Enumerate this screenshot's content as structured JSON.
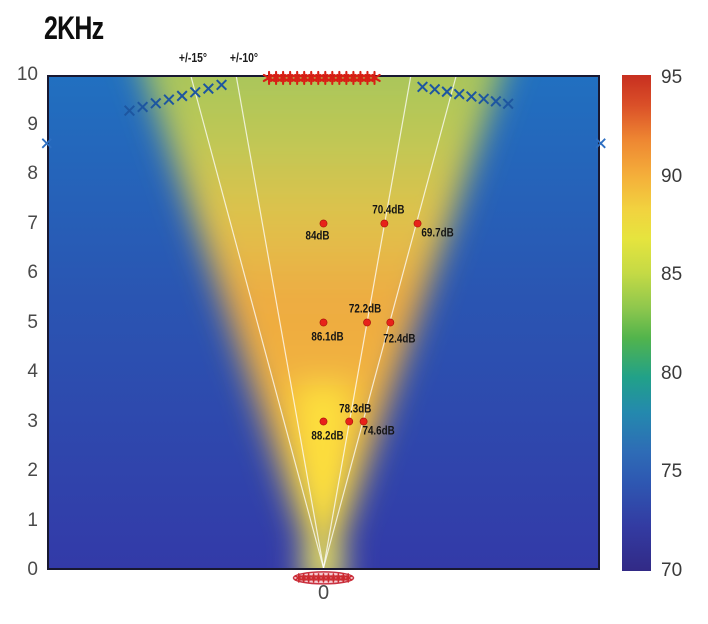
{
  "palette": {
    "background_low": "#333aa8",
    "background_mid": "#2a55b2",
    "background_high": "#2170c0",
    "beam_core": "#ffe944",
    "beam_top": "#9dc45f",
    "marker_red": "#d81f14",
    "marker_blue": "#1d56a0",
    "guide_line": "#ffffff",
    "axis_text": "#4a4a4a",
    "label_text": "#141414"
  },
  "chart_data": {
    "type": "heatmap",
    "title": "2KHz",
    "xlabel": "",
    "ylabel": "",
    "x_axis": {
      "tick_labels": [
        "0"
      ]
    },
    "y_axis": {
      "range": [
        0,
        10
      ],
      "ticks": [
        10,
        9,
        8,
        7,
        6,
        5,
        4,
        3,
        2,
        1,
        0
      ]
    },
    "colorbar": {
      "range": [
        70,
        95
      ],
      "ticks": [
        95,
        90,
        85,
        80,
        75,
        70
      ],
      "unit": "dB"
    },
    "guide_angles": [
      {
        "angle_deg": 15,
        "label": "+/-15°"
      },
      {
        "angle_deg": 10,
        "label": "+/-10°"
      }
    ],
    "measurements": [
      {
        "height": 7,
        "angle_deg": 0,
        "spl_db": 84.0,
        "label": "84dB",
        "x": 0,
        "y": 7,
        "label_dx": -6,
        "label_dy": 16
      },
      {
        "height": 7,
        "angle_deg": 10,
        "spl_db": 70.4,
        "label": "70.4dB",
        "x": 1.23,
        "y": 7,
        "label_dx": 4,
        "label_dy": -10
      },
      {
        "height": 7,
        "angle_deg": 15,
        "spl_db": 69.7,
        "label": "69.7dB",
        "x": 1.9,
        "y": 7,
        "label_dx": 20,
        "label_dy": 13
      },
      {
        "height": 5,
        "angle_deg": 0,
        "spl_db": 86.1,
        "label": "86.1dB",
        "x": 0,
        "y": 5,
        "label_dx": 4,
        "label_dy": 18
      },
      {
        "height": 5,
        "angle_deg": 10,
        "spl_db": 72.2,
        "label": "72.2dB",
        "x": 0.88,
        "y": 5,
        "label_dx": -2,
        "label_dy": -10
      },
      {
        "height": 5,
        "angle_deg": 15,
        "spl_db": 72.4,
        "label": "72.4dB",
        "x": 1.35,
        "y": 5,
        "label_dx": 9,
        "label_dy": 20
      },
      {
        "height": 3,
        "angle_deg": 0,
        "spl_db": 88.2,
        "label": "88.2dB",
        "x": 0,
        "y": 3,
        "label_dx": 4,
        "label_dy": 18
      },
      {
        "height": 3,
        "angle_deg": 10,
        "spl_db": 78.3,
        "label": "78.3dB",
        "x": 0.52,
        "y": 3,
        "label_dx": 6,
        "label_dy": -9
      },
      {
        "height": 3,
        "angle_deg": 15,
        "spl_db": 74.6,
        "label": "74.6dB",
        "x": 0.81,
        "y": 3,
        "label_dx": 15,
        "label_dy": 13
      }
    ],
    "marker_clusters": [
      {
        "name": "top-asterisk-row",
        "type": "asterisk",
        "color": "#d81f14",
        "size": 6,
        "width": 2.1,
        "span": {
          "x1": -1.1,
          "y1": 9.94,
          "x2": 1.03,
          "y2": 9.94,
          "count": 16
        }
      },
      {
        "name": "beam-edge-left",
        "type": "x",
        "color": "#1d56a0",
        "size": 4.8,
        "width": 2.0,
        "span": {
          "x1": -3.92,
          "y1": 9.28,
          "x2": -2.06,
          "y2": 9.8,
          "count": 8
        }
      },
      {
        "name": "beam-edge-right",
        "type": "x",
        "color": "#1d56a0",
        "size": 4.8,
        "width": 2.0,
        "span": {
          "x1": 2.0,
          "y1": 9.76,
          "x2": 3.73,
          "y2": 9.42,
          "count": 8
        }
      },
      {
        "name": "far-edge-markers",
        "type": "x",
        "color": "#2e6fc2",
        "size": 4.5,
        "width": 1.8,
        "points": [
          [
            -5.59,
            8.62
          ],
          [
            5.6,
            8.62
          ]
        ]
      },
      {
        "name": "source-array",
        "type": "asterisk",
        "color": "#cc2a30",
        "size": 4,
        "width": 1.6,
        "span": {
          "x1": -0.5,
          "y1": -0.16,
          "x2": 0.5,
          "y2": -0.16,
          "count": 11
        }
      }
    ],
    "source_outline": {
      "cx": 0,
      "cy": -0.16,
      "rx": 30,
      "ry": 6,
      "stroke": "#c93343",
      "fill": "rgba(220,90,110,0.30)"
    }
  }
}
